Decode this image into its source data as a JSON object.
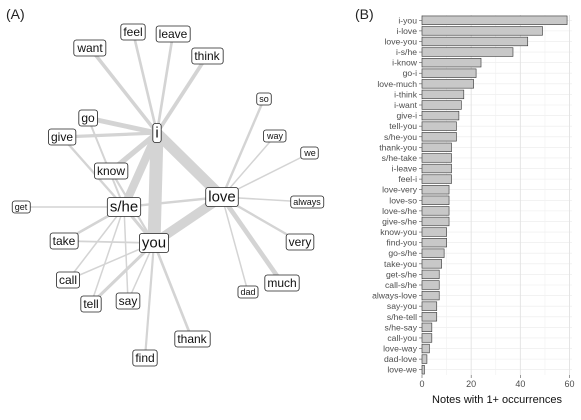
{
  "panel_a": {
    "label": "(A)"
  },
  "panel_b": {
    "label": "(B)"
  },
  "chart_data": [
    {
      "type": "network",
      "nodes": [
        {
          "id": "i",
          "size": "large"
        },
        {
          "id": "love",
          "size": "large"
        },
        {
          "id": "you",
          "size": "large"
        },
        {
          "id": "s/he",
          "size": "large"
        },
        {
          "id": "feel",
          "size": "medium"
        },
        {
          "id": "leave",
          "size": "medium"
        },
        {
          "id": "want",
          "size": "medium"
        },
        {
          "id": "think",
          "size": "medium"
        },
        {
          "id": "go",
          "size": "medium"
        },
        {
          "id": "give",
          "size": "medium"
        },
        {
          "id": "know",
          "size": "medium"
        },
        {
          "id": "take",
          "size": "medium"
        },
        {
          "id": "call",
          "size": "medium"
        },
        {
          "id": "tell",
          "size": "medium"
        },
        {
          "id": "say",
          "size": "medium"
        },
        {
          "id": "get",
          "size": "small"
        },
        {
          "id": "so",
          "size": "small"
        },
        {
          "id": "way",
          "size": "small"
        },
        {
          "id": "we",
          "size": "small"
        },
        {
          "id": "always",
          "size": "small"
        },
        {
          "id": "very",
          "size": "medium"
        },
        {
          "id": "much",
          "size": "medium"
        },
        {
          "id": "dad",
          "size": "small"
        },
        {
          "id": "thank",
          "size": "medium"
        },
        {
          "id": "find",
          "size": "medium"
        }
      ],
      "edges": [
        [
          "i",
          "you",
          59
        ],
        [
          "i",
          "love",
          49
        ],
        [
          "love",
          "you",
          43
        ],
        [
          "i",
          "s/he",
          37
        ],
        [
          "i",
          "know",
          24
        ],
        [
          "go",
          "i",
          22
        ],
        [
          "love",
          "much",
          21
        ],
        [
          "i",
          "think",
          17
        ],
        [
          "i",
          "want",
          16
        ],
        [
          "give",
          "i",
          15
        ],
        [
          "tell",
          "you",
          14
        ],
        [
          "s/he",
          "you",
          14
        ],
        [
          "thank",
          "you",
          12
        ],
        [
          "s/he",
          "take",
          12
        ],
        [
          "i",
          "leave",
          12
        ],
        [
          "feel",
          "i",
          12
        ],
        [
          "love",
          "very",
          11
        ],
        [
          "love",
          "so",
          11
        ],
        [
          "love",
          "s/he",
          11
        ],
        [
          "give",
          "s/he",
          11
        ],
        [
          "know",
          "you",
          10
        ],
        [
          "find",
          "you",
          10
        ],
        [
          "go",
          "s/he",
          9
        ],
        [
          "take",
          "you",
          8
        ],
        [
          "get",
          "s/he",
          7
        ],
        [
          "call",
          "s/he",
          7
        ],
        [
          "always",
          "love",
          7
        ],
        [
          "say",
          "you",
          6
        ],
        [
          "s/he",
          "tell",
          6
        ],
        [
          "s/he",
          "say",
          4
        ],
        [
          "call",
          "you",
          4
        ],
        [
          "love",
          "way",
          3
        ],
        [
          "dad",
          "love",
          2
        ],
        [
          "love",
          "we",
          1
        ]
      ]
    },
    {
      "type": "bar",
      "orientation": "horizontal",
      "categories": [
        "i-you",
        "i-love",
        "love-you",
        "i-s/he",
        "i-know",
        "go-i",
        "love-much",
        "i-think",
        "i-want",
        "give-i",
        "tell-you",
        "s/he-you",
        "thank-you",
        "s/he-take",
        "i-leave",
        "feel-i",
        "love-very",
        "love-so",
        "love-s/he",
        "give-s/he",
        "know-you",
        "find-you",
        "go-s/he",
        "take-you",
        "get-s/he",
        "call-s/he",
        "always-love",
        "say-you",
        "s/he-tell",
        "s/he-say",
        "call-you",
        "love-way",
        "dad-love",
        "love-we"
      ],
      "values": [
        59,
        49,
        43,
        37,
        24,
        22,
        21,
        17,
        16,
        15,
        14,
        14,
        12,
        12,
        12,
        12,
        11,
        11,
        11,
        11,
        10,
        10,
        9,
        8,
        7,
        7,
        7,
        6,
        6,
        4,
        4,
        3,
        2,
        1
      ],
      "xlabel": "Notes with 1+ occurrences",
      "ylabel": "",
      "xlim": [
        0,
        61
      ],
      "xticks": [
        0,
        20,
        40,
        60
      ],
      "grid": true,
      "bar_color": "#c8c8c8",
      "bar_edge_color": "#333333"
    }
  ]
}
